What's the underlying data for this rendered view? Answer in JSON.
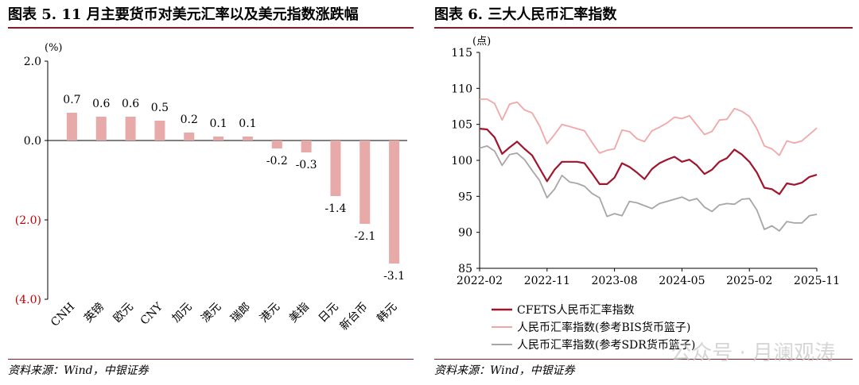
{
  "left_panel": {
    "title": "图表 5. 11 月主要货币对美元汇率以及美元指数涨跌幅",
    "source": "资料来源：Wind，中银证券"
  },
  "right_panel": {
    "title": "图表 6. 三大人民币汇率指数",
    "source": "资料来源：Wind，中银证券"
  },
  "watermark": "公众号 · 月澜观涛",
  "colors": {
    "bar": "#e8a9a9",
    "cfets": "#a0142c",
    "bis": "#f2a7a7",
    "sdr": "#a6a6a6",
    "negative_tick": "#c00000",
    "rule": "#7b1e2a"
  },
  "chart_data": [
    {
      "type": "bar",
      "ylabel": "(%)",
      "ylim": [
        -4.0,
        2.0
      ],
      "yticks": [
        2.0,
        0.0,
        -2.0,
        -4.0
      ],
      "ytick_labels": [
        "2.0",
        "0.0",
        "(2.0)",
        "(4.0)"
      ],
      "categories": [
        "CNH",
        "英镑",
        "欧元",
        "CNY",
        "加元",
        "澳元",
        "瑞郎",
        "港元",
        "美指",
        "日元",
        "新台币",
        "韩元"
      ],
      "values": [
        0.7,
        0.6,
        0.6,
        0.5,
        0.2,
        0.1,
        0.1,
        -0.2,
        -0.3,
        -1.4,
        -2.1,
        -3.1
      ],
      "data_labels": [
        "0.7",
        "0.6",
        "0.6",
        "0.5",
        "0.2",
        "0.1",
        "0.1",
        "-0.2",
        "-0.3",
        "-1.4",
        "-2.1",
        "-3.1"
      ]
    },
    {
      "type": "line",
      "ylabel": "(点)",
      "ylim": [
        85,
        115
      ],
      "yticks": [
        85,
        90,
        95,
        100,
        105,
        110,
        115
      ],
      "x": [
        "2022-02",
        "2022-03",
        "2022-04",
        "2022-05",
        "2022-06",
        "2022-07",
        "2022-08",
        "2022-09",
        "2022-10",
        "2022-11",
        "2022-12",
        "2023-01",
        "2023-02",
        "2023-03",
        "2023-04",
        "2023-05",
        "2023-06",
        "2023-07",
        "2023-08",
        "2023-09",
        "2023-10",
        "2023-11",
        "2023-12",
        "2024-01",
        "2024-02",
        "2024-03",
        "2024-04",
        "2024-05",
        "2024-06",
        "2024-07",
        "2024-08",
        "2024-09",
        "2024-10",
        "2024-11",
        "2024-12",
        "2025-01",
        "2025-02",
        "2025-03",
        "2025-04",
        "2025-05",
        "2025-06",
        "2025-07",
        "2025-08",
        "2025-09",
        "2025-10",
        "2025-11"
      ],
      "xtick_labels": [
        "2022-02",
        "2022-11",
        "2023-08",
        "2024-05",
        "2025-02",
        "2025-11"
      ],
      "series": [
        {
          "name": "CFETS人民币汇率指数",
          "values": [
            104.4,
            104.3,
            103.2,
            100.9,
            101.8,
            102.6,
            101.6,
            100.7,
            98.9,
            97.1,
            98.7,
            99.8,
            99.8,
            99.8,
            99.6,
            98.2,
            96.7,
            96.7,
            97.6,
            99.6,
            99.1,
            98.3,
            97.4,
            98.8,
            99.6,
            100.1,
            100.5,
            99.8,
            100.1,
            99.3,
            98.1,
            98.7,
            99.8,
            100.3,
            101.5,
            100.8,
            99.8,
            98.3,
            96.2,
            96.0,
            95.3,
            96.8,
            96.6,
            96.9,
            97.7,
            98.0
          ]
        },
        {
          "name": "人民币汇率指数(参考BIS货币篮子)",
          "values": [
            108.5,
            108.5,
            107.9,
            105.6,
            107.8,
            108.1,
            107.0,
            106.6,
            104.8,
            102.3,
            103.6,
            105.0,
            104.7,
            104.4,
            104.1,
            102.5,
            101.0,
            101.4,
            101.6,
            104.2,
            104.0,
            103.0,
            102.6,
            104.1,
            104.6,
            105.2,
            106.0,
            105.8,
            106.2,
            104.9,
            103.6,
            104.0,
            105.6,
            105.7,
            107.2,
            106.8,
            106.1,
            104.4,
            102.0,
            101.6,
            100.7,
            102.7,
            102.4,
            102.7,
            103.6,
            104.5
          ]
        },
        {
          "name": "人民币汇率指数(参考SDR货币篮子)",
          "values": [
            101.7,
            102.0,
            101.3,
            99.3,
            100.8,
            101.0,
            100.1,
            98.6,
            97.2,
            94.8,
            96.0,
            97.9,
            97.0,
            96.8,
            96.4,
            95.4,
            94.8,
            92.2,
            92.6,
            92.3,
            94.3,
            94.1,
            93.7,
            93.3,
            94.0,
            94.3,
            94.6,
            94.9,
            94.4,
            94.7,
            93.5,
            92.9,
            93.8,
            94.0,
            93.9,
            94.6,
            94.7,
            93.1,
            90.4,
            90.9,
            90.2,
            91.5,
            91.3,
            91.3,
            92.3,
            92.5
          ]
        }
      ],
      "legend": "bottom"
    }
  ]
}
